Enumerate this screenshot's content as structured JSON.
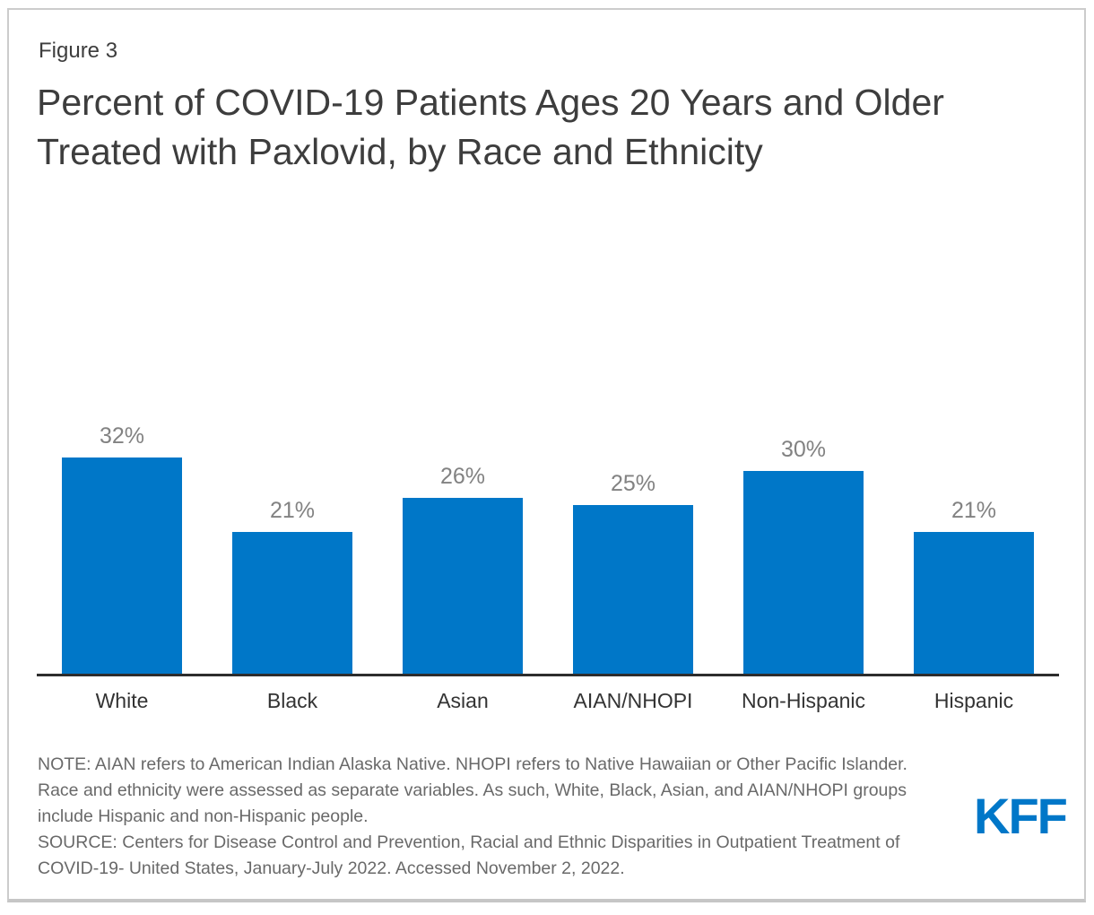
{
  "figure_label": "Figure 3",
  "title": "Percent of COVID-19 Patients Ages 20 Years and Older Treated with Paxlovid, by Race and Ethnicity",
  "chart_data": {
    "type": "bar",
    "title": "Percent of COVID-19 Patients Ages 20 Years and Older Treated with Paxlovid, by Race and Ethnicity",
    "categories": [
      "White",
      "Black",
      "Asian",
      "AIAN/NHOPI",
      "Non-Hispanic",
      "Hispanic"
    ],
    "values": [
      32,
      21,
      26,
      25,
      30,
      21
    ],
    "value_labels": [
      "32%",
      "21%",
      "26%",
      "25%",
      "30%",
      "21%"
    ],
    "xlabel": "",
    "ylabel": "",
    "ylim": [
      0,
      36
    ],
    "grid": false,
    "legend_position": "none",
    "bar_color": "#0077C8",
    "value_label_color": "#828282",
    "axis_label_color": "#333333",
    "axis_line_color": "#2D2D2D"
  },
  "footnotes": {
    "note": "NOTE: AIAN refers to American Indian Alaska Native. NHOPI refers to Native Hawaiian or Other Pacific Islander. Race and ethnicity were assessed as separate variables. As such, White, Black, Asian, and AIAN/NHOPI groups include Hispanic and non-Hispanic people.",
    "source": "SOURCE: Centers for Disease Control and Prevention, Racial and Ethnic Disparities in Outpatient Treatment of COVID-19- United States, January-July 2022. Accessed November 2, 2022."
  },
  "logo": {
    "text": "KFF",
    "color": "#0077C8"
  },
  "colors": {
    "frame_border": "#CCCCCC",
    "background": "#FFFFFF"
  }
}
